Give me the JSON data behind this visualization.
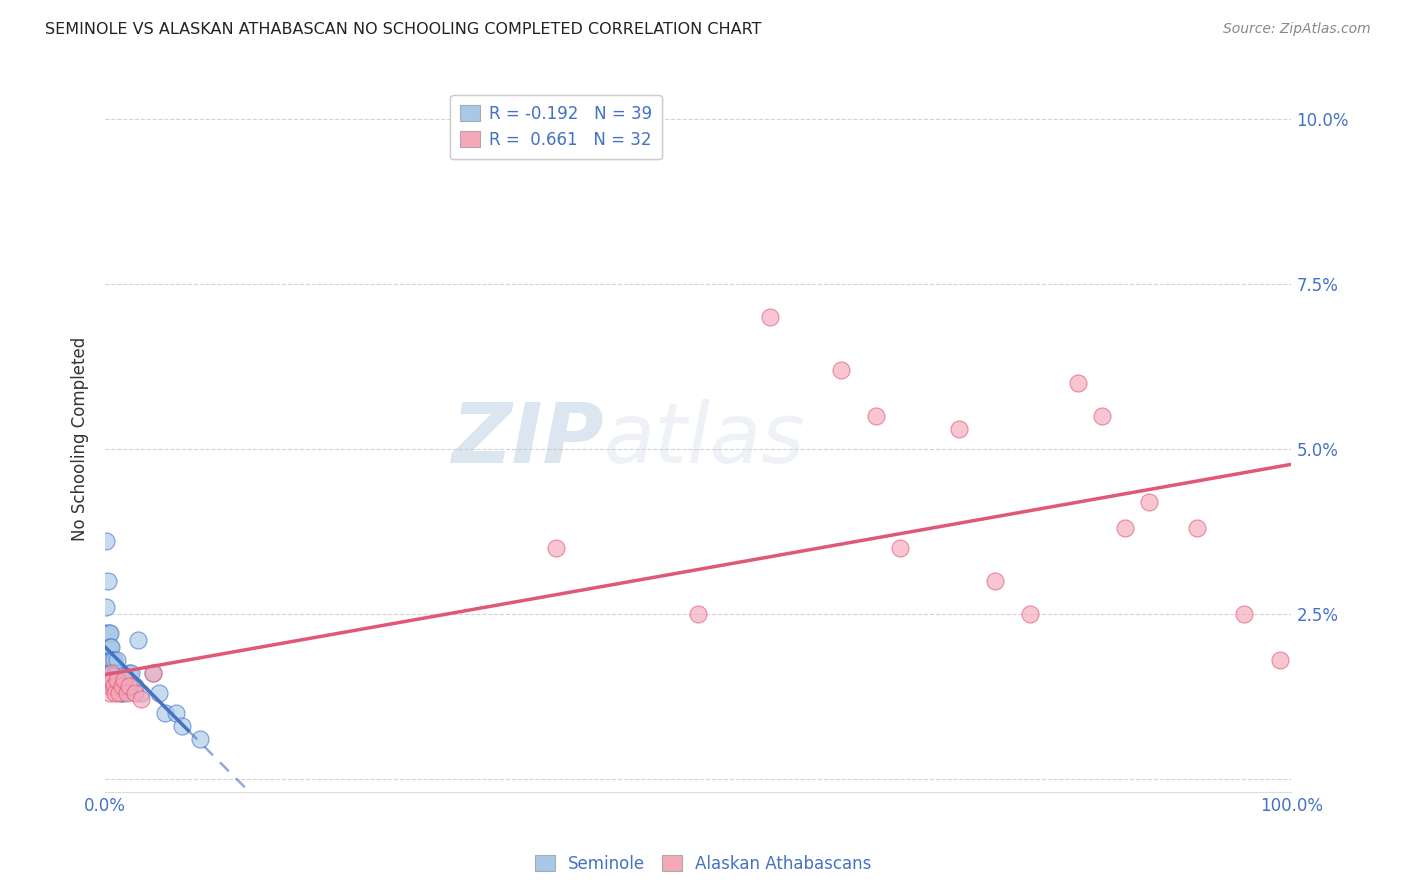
{
  "title": "SEMINOLE VS ALASKAN ATHABASCAN NO SCHOOLING COMPLETED CORRELATION CHART",
  "source": "Source: ZipAtlas.com",
  "ylabel": "No Schooling Completed",
  "seminole_color": "#a8c8e8",
  "alaskan_color": "#f4a8b8",
  "seminole_line_color": "#4472c4",
  "alaskan_line_color": "#e05878",
  "seminole_R": -0.192,
  "seminole_N": 39,
  "alaskan_R": 0.661,
  "alaskan_N": 32,
  "seminole_x": [
    0.001,
    0.001,
    0.001,
    0.002,
    0.002,
    0.002,
    0.003,
    0.003,
    0.003,
    0.004,
    0.004,
    0.004,
    0.004,
    0.005,
    0.005,
    0.005,
    0.006,
    0.006,
    0.006,
    0.007,
    0.007,
    0.008,
    0.009,
    0.01,
    0.01,
    0.012,
    0.013,
    0.015,
    0.02,
    0.022,
    0.025,
    0.028,
    0.03,
    0.04,
    0.045,
    0.05,
    0.06,
    0.065,
    0.08
  ],
  "seminole_y": [
    0.036,
    0.026,
    0.022,
    0.03,
    0.02,
    0.018,
    0.022,
    0.018,
    0.014,
    0.022,
    0.02,
    0.018,
    0.016,
    0.02,
    0.018,
    0.016,
    0.018,
    0.016,
    0.014,
    0.018,
    0.015,
    0.016,
    0.014,
    0.016,
    0.018,
    0.015,
    0.013,
    0.013,
    0.016,
    0.016,
    0.014,
    0.021,
    0.013,
    0.016,
    0.013,
    0.01,
    0.01,
    0.008,
    0.006
  ],
  "alaskan_x": [
    0.002,
    0.003,
    0.004,
    0.005,
    0.006,
    0.007,
    0.008,
    0.01,
    0.012,
    0.014,
    0.016,
    0.018,
    0.02,
    0.025,
    0.03,
    0.04,
    0.38,
    0.5,
    0.56,
    0.62,
    0.65,
    0.67,
    0.72,
    0.75,
    0.78,
    0.82,
    0.84,
    0.86,
    0.88,
    0.92,
    0.96,
    0.99
  ],
  "alaskan_y": [
    0.015,
    0.014,
    0.013,
    0.016,
    0.015,
    0.014,
    0.013,
    0.015,
    0.013,
    0.014,
    0.015,
    0.013,
    0.014,
    0.013,
    0.012,
    0.016,
    0.035,
    0.025,
    0.07,
    0.062,
    0.055,
    0.035,
    0.053,
    0.03,
    0.025,
    0.06,
    0.055,
    0.038,
    0.042,
    0.038,
    0.025,
    0.018
  ],
  "watermark_zip": "ZIP",
  "watermark_atlas": "atlas",
  "background_color": "#ffffff",
  "grid_color": "#c8c8c8",
  "tick_color": "#4472c4",
  "xmin": 0.0,
  "xmax": 1.0,
  "ymin": -0.002,
  "ymax": 0.105,
  "yticks": [
    0.0,
    0.025,
    0.05,
    0.075,
    0.1
  ],
  "ytick_labels": [
    "",
    "2.5%",
    "5.0%",
    "7.5%",
    "10.0%"
  ],
  "xticks": [
    0.0,
    0.2,
    0.4,
    0.6,
    0.8,
    1.0
  ],
  "xtick_labels": [
    "0.0%",
    "",
    "",
    "",
    "",
    "100.0%"
  ]
}
